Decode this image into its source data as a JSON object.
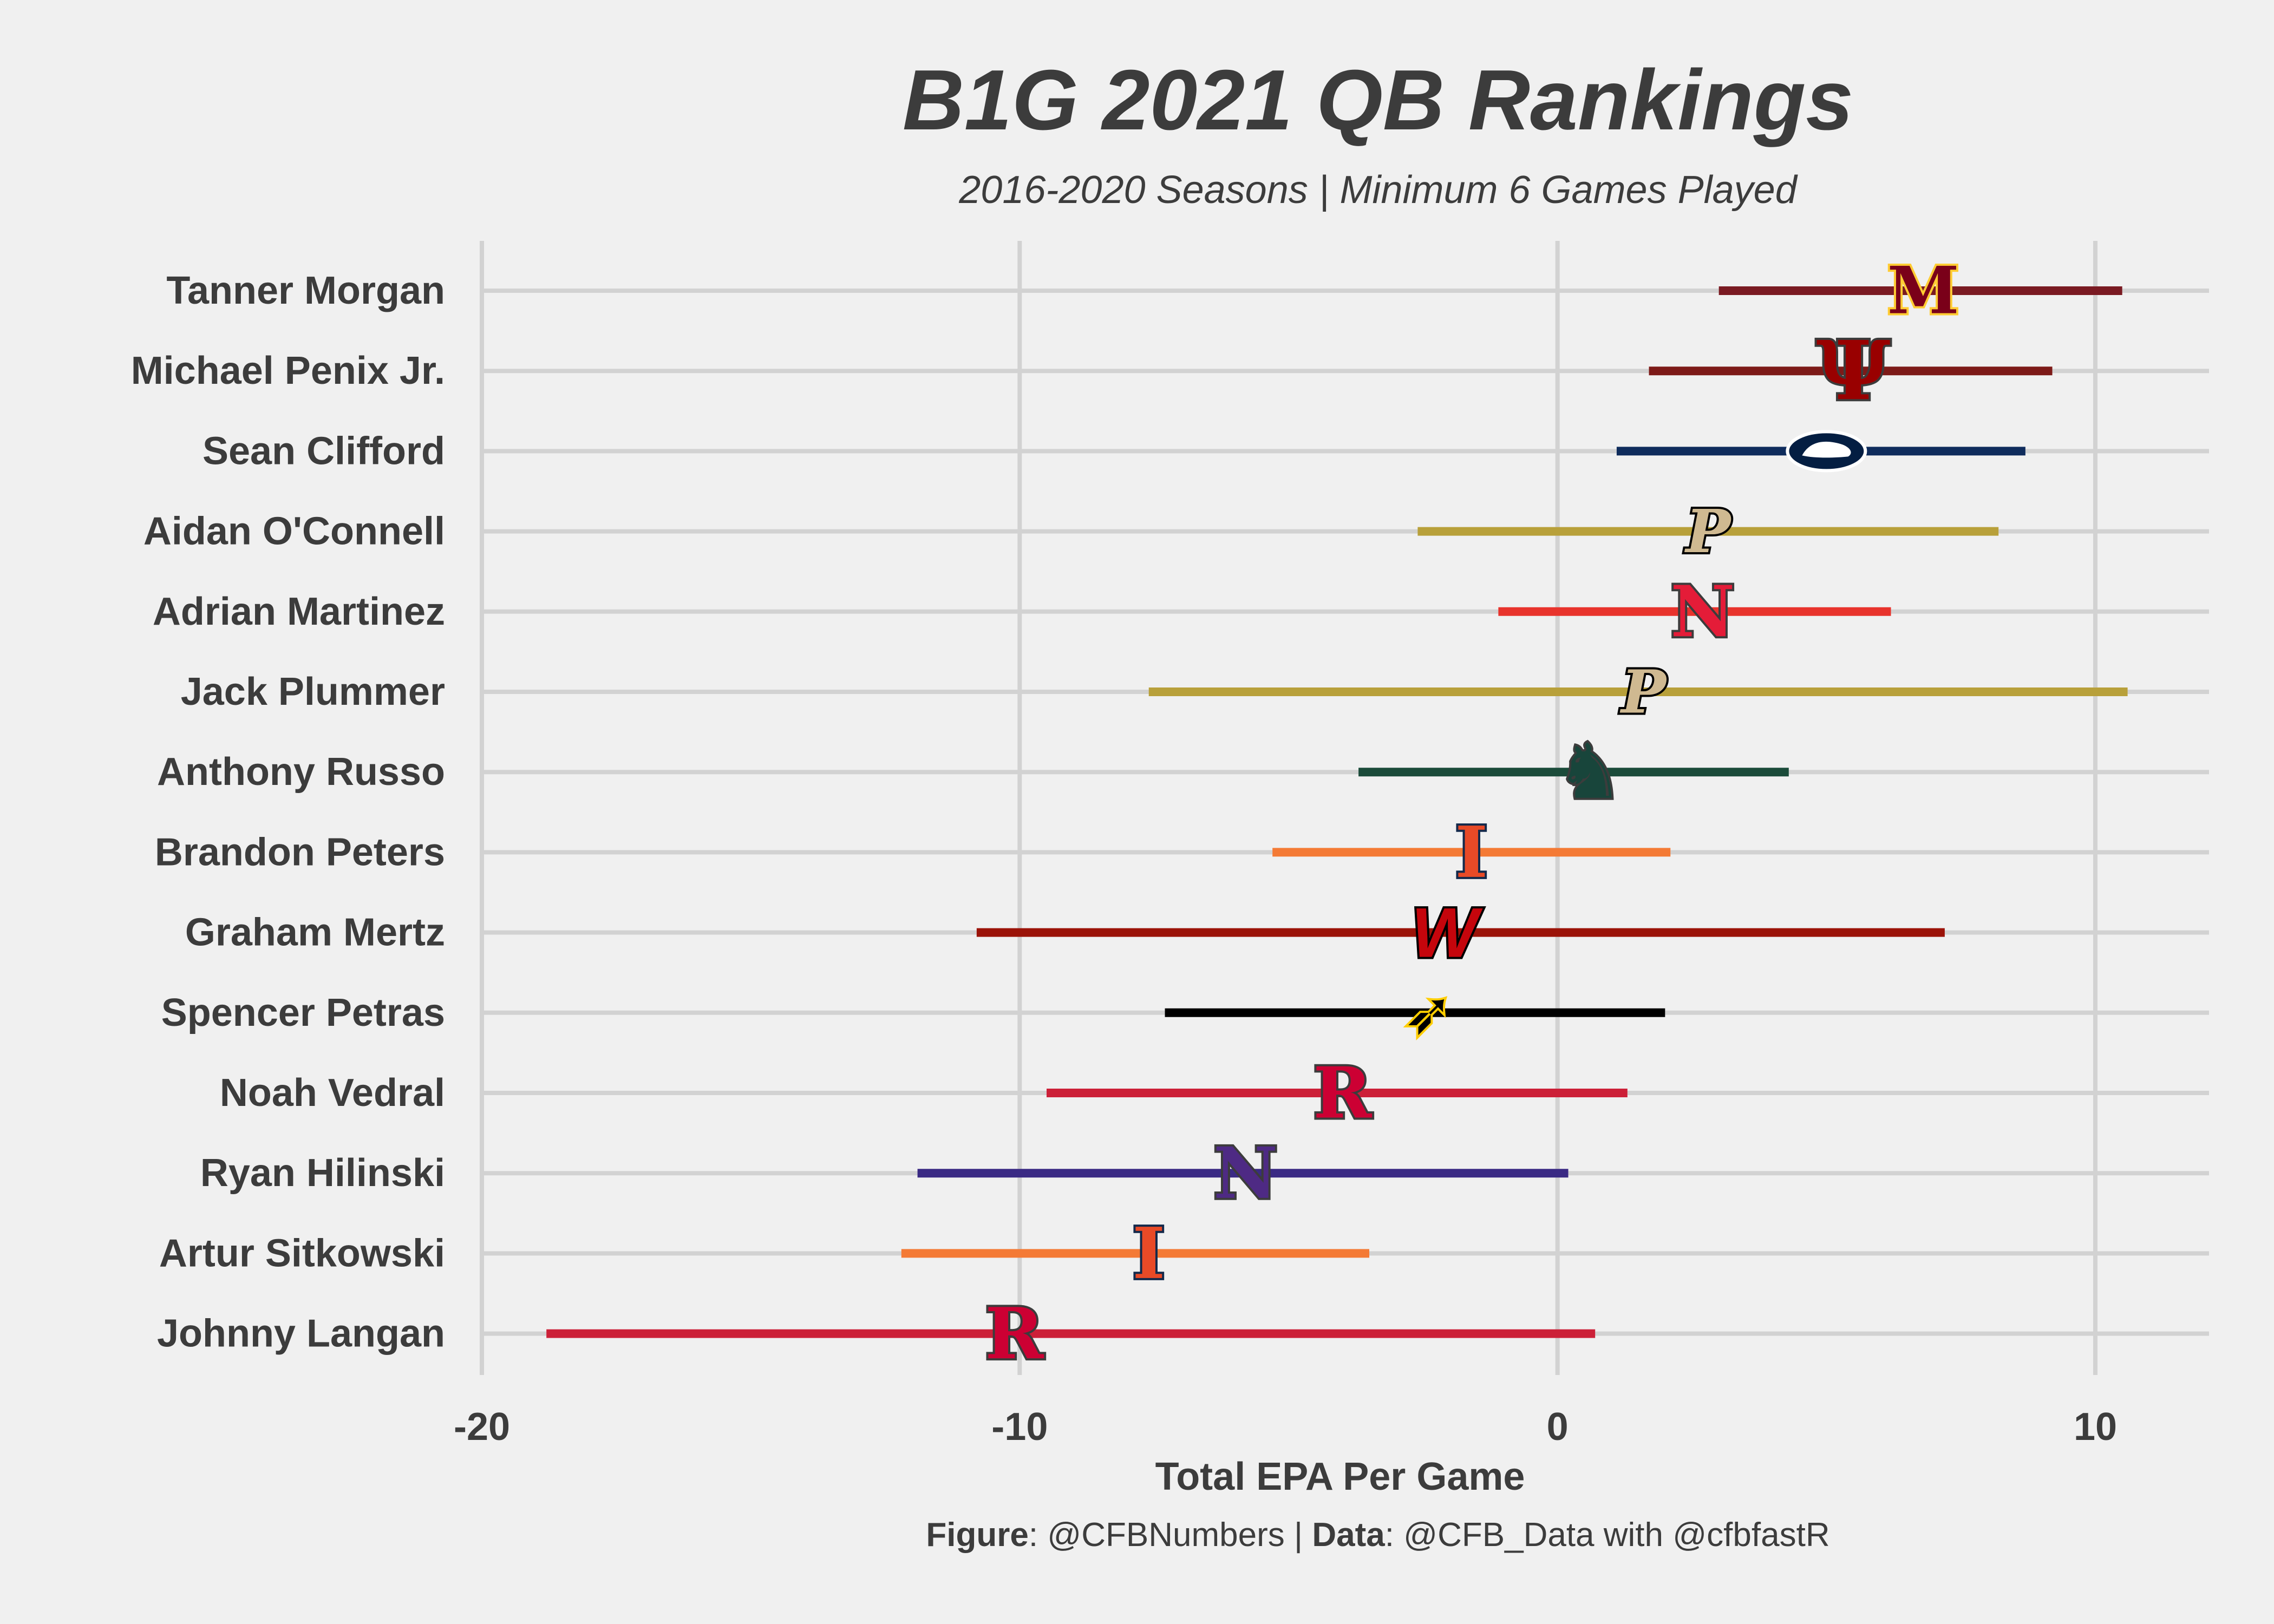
{
  "title": "B1G 2021 QB Rankings",
  "subtitle": "2016-2020 Seasons | Minimum 6 Games Played",
  "caption": {
    "figure_label": "Figure",
    "figure_value": ": @CFBNumbers | ",
    "data_label": "Data",
    "data_value": ": @CFB_Data with @cfbfastR"
  },
  "chart_data": {
    "type": "range-dot",
    "title": "B1G 2021 QB Rankings",
    "subtitle": "2016-2020 Seasons | Minimum 6 Games Played",
    "xlabel": "Total EPA Per Game",
    "ylabel": "",
    "xlim": [
      -20,
      12
    ],
    "xticks": [
      -20,
      -10,
      0,
      10
    ],
    "grid": true,
    "players": [
      {
        "name": "Tanner Morgan",
        "low": 3.0,
        "high": 10.5,
        "point": 6.8,
        "team": "Minnesota",
        "logo": "M",
        "color": "#7a1a22",
        "logo_color": "#7a0019",
        "logo_accent": "#ffcc33"
      },
      {
        "name": "Michael Penix Jr.",
        "low": 1.7,
        "high": 9.2,
        "point": 5.5,
        "team": "Indiana",
        "logo": "IU",
        "color": "#7d1a18",
        "logo_color": "#990000",
        "logo_accent": "#ffffff"
      },
      {
        "name": "Sean Clifford",
        "low": 1.1,
        "high": 8.7,
        "point": 5.0,
        "team": "Penn State",
        "logo": "PS",
        "color": "#0f2c5c",
        "logo_color": "#041e42",
        "logo_accent": "#ffffff"
      },
      {
        "name": "Aidan O'Connell",
        "low": -2.6,
        "high": 8.2,
        "point": 2.8,
        "team": "Purdue",
        "logo": "P",
        "color": "#b8a03a",
        "logo_color": "#cfb991",
        "logo_accent": "#000000"
      },
      {
        "name": "Adrian Martinez",
        "low": -1.1,
        "high": 6.2,
        "point": 2.7,
        "team": "Nebraska",
        "logo": "N",
        "color": "#e8332c",
        "logo_color": "#e41c38",
        "logo_accent": "#ffffff"
      },
      {
        "name": "Jack Plummer",
        "low": -7.6,
        "high": 10.6,
        "point": 1.6,
        "team": "Purdue",
        "logo": "P",
        "color": "#b8a03a",
        "logo_color": "#cfb991",
        "logo_accent": "#000000"
      },
      {
        "name": "Anthony Russo",
        "low": -3.7,
        "high": 4.3,
        "point": 0.6,
        "team": "Michigan State",
        "logo": "S",
        "color": "#1b4b3a",
        "logo_color": "#18453b",
        "logo_accent": "#ffffff"
      },
      {
        "name": "Brandon Peters",
        "low": -5.3,
        "high": 2.1,
        "point": -1.6,
        "team": "Illinois",
        "logo": "I",
        "color": "#f47a35",
        "logo_color": "#e84a27",
        "logo_accent": "#13294b"
      },
      {
        "name": "Graham Mertz",
        "low": -10.8,
        "high": 7.2,
        "point": -2.1,
        "team": "Wisconsin",
        "logo": "W",
        "color": "#9b1308",
        "logo_color": "#c5050c",
        "logo_accent": "#000000"
      },
      {
        "name": "Spencer Petras",
        "low": -7.3,
        "high": 2.0,
        "point": -2.4,
        "team": "Iowa",
        "logo": "H",
        "color": "#000000",
        "logo_color": "#000000",
        "logo_accent": "#ffcd00"
      },
      {
        "name": "Noah Vedral",
        "low": -9.5,
        "high": 1.3,
        "point": -4.0,
        "team": "Rutgers",
        "logo": "R",
        "color": "#cc2038",
        "logo_color": "#cc0033",
        "logo_accent": "#ffffff"
      },
      {
        "name": "Ryan Hilinski",
        "low": -11.9,
        "high": 0.2,
        "point": -5.8,
        "team": "Northwestern",
        "logo": "N",
        "color": "#3a2a84",
        "logo_color": "#4e2a84",
        "logo_accent": "#ffffff"
      },
      {
        "name": "Artur Sitkowski",
        "low": -12.2,
        "high": -3.5,
        "point": -7.6,
        "team": "Illinois",
        "logo": "I",
        "color": "#f47a35",
        "logo_color": "#e84a27",
        "logo_accent": "#13294b"
      },
      {
        "name": "Johnny Langan",
        "low": -18.8,
        "high": 0.7,
        "point": -10.1,
        "team": "Rutgers",
        "logo": "R",
        "color": "#cc2038",
        "logo_color": "#cc0033",
        "logo_accent": "#ffffff"
      }
    ]
  }
}
